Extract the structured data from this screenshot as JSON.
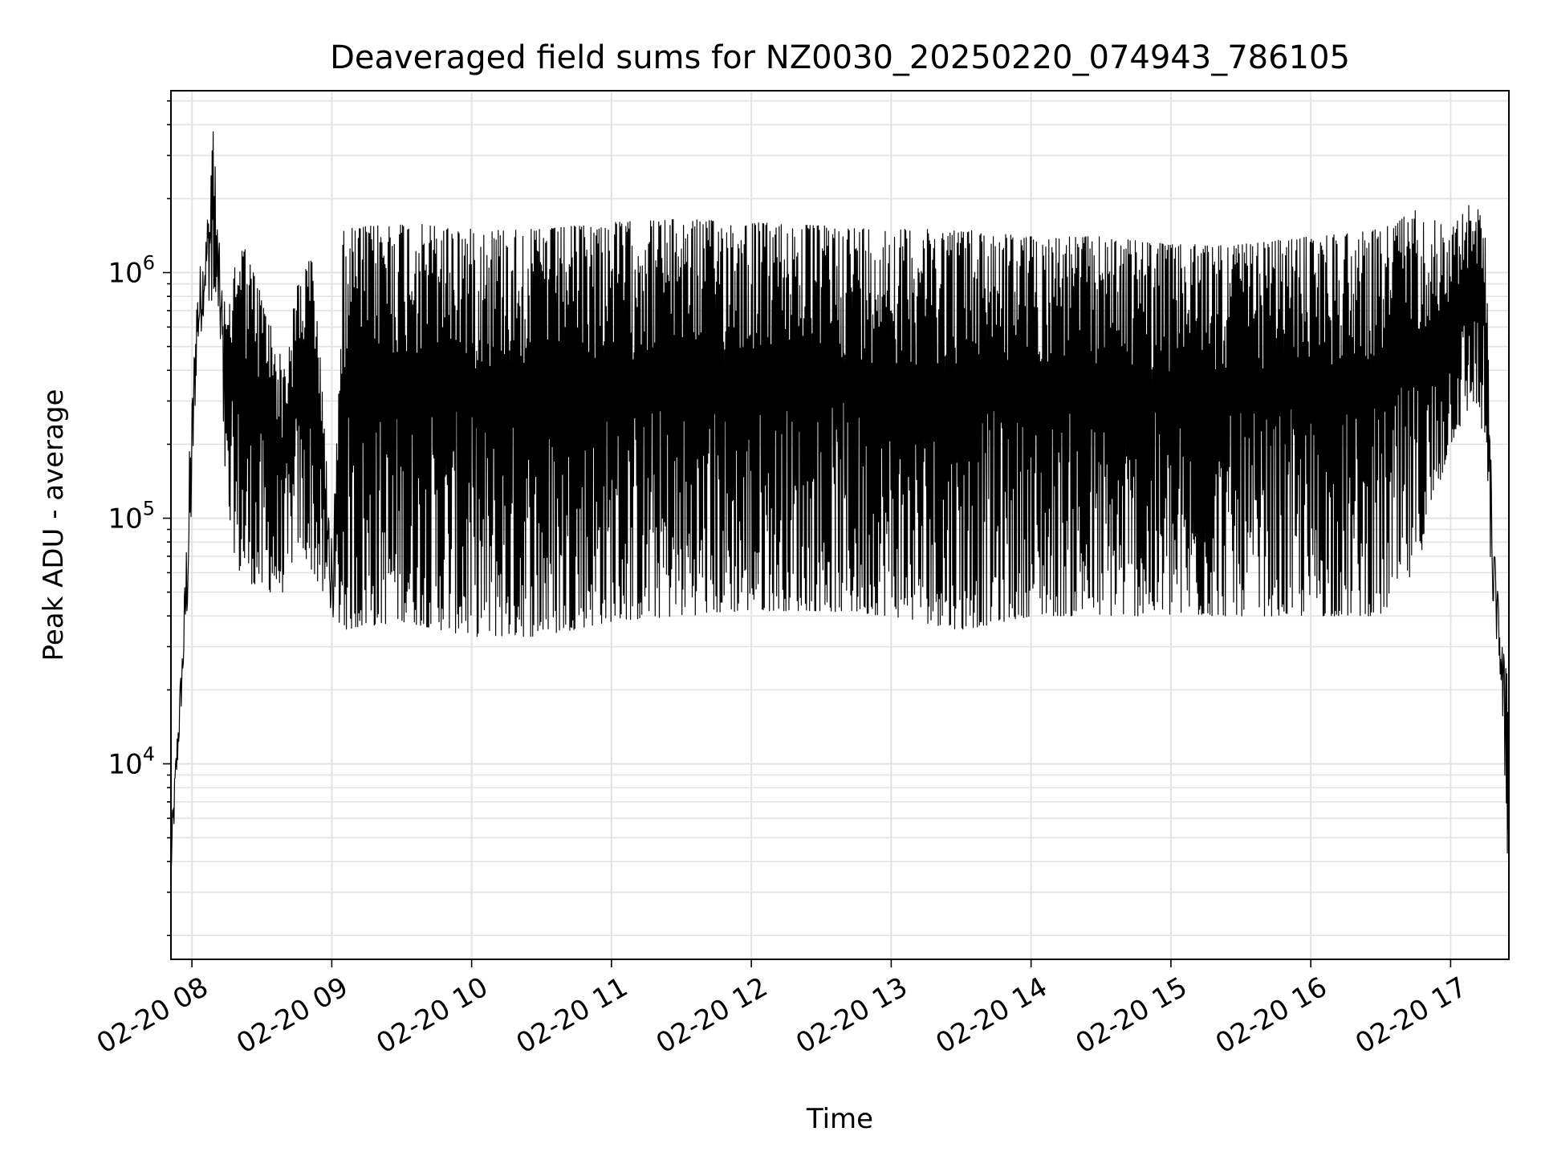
{
  "chart_data": {
    "type": "line",
    "title": "Deaveraged field sums for NZ0030_20250220_074943_786105",
    "xlabel": "Time",
    "ylabel": "Peak ADU - average",
    "y_scale": "log",
    "x_tick_labels": [
      "02-20 08",
      "02-20 09",
      "02-20 10",
      "02-20 11",
      "02-20 12",
      "02-20 13",
      "02-20 14",
      "02-20 15",
      "02-20 16",
      "02-20 17"
    ],
    "y_tick_labels": [
      {
        "base": "10",
        "exp": "4",
        "value": 10000
      },
      {
        "base": "10",
        "exp": "5",
        "value": 100000
      },
      {
        "base": "10",
        "exp": "6",
        "value": 1000000
      }
    ],
    "xlim": [
      "2025-02-20 07:51",
      "2025-02-20 17:25"
    ],
    "ylim": [
      1600,
      5500000
    ],
    "grid": true,
    "line_color": "#000000",
    "series": [
      {
        "envelope": [
          {
            "t": "07:51",
            "low": 3000,
            "high": 5000
          },
          {
            "t": "07:53",
            "low": 7000,
            "high": 11000
          },
          {
            "t": "07:56",
            "low": 20000,
            "high": 32000
          },
          {
            "t": "07:59",
            "low": 50000,
            "high": 200000
          },
          {
            "t": "08:02",
            "low": 400000,
            "high": 900000
          },
          {
            "t": "08:06",
            "low": 800000,
            "high": 1500000
          },
          {
            "t": "08:09",
            "low": 700000,
            "high": 4000000
          },
          {
            "t": "08:12",
            "low": 500000,
            "high": 1200000
          },
          {
            "t": "08:15",
            "low": 100000,
            "high": 600000
          },
          {
            "t": "08:20",
            "low": 60000,
            "high": 1500000
          },
          {
            "t": "08:30",
            "low": 50000,
            "high": 800000
          },
          {
            "t": "08:40",
            "low": 50000,
            "high": 400000
          },
          {
            "t": "08:45",
            "low": 80000,
            "high": 900000
          },
          {
            "t": "08:52",
            "low": 60000,
            "high": 1200000
          },
          {
            "t": "09:00",
            "low": 40000,
            "high": 90000
          },
          {
            "t": "09:05",
            "low": 35000,
            "high": 1500000
          },
          {
            "t": "09:30",
            "low": 38000,
            "high": 1600000
          },
          {
            "t": "10:00",
            "low": 33000,
            "high": 1500000
          },
          {
            "t": "10:30",
            "low": 33000,
            "high": 1500000
          },
          {
            "t": "11:00",
            "low": 38000,
            "high": 1600000
          },
          {
            "t": "11:30",
            "low": 40000,
            "high": 1650000
          },
          {
            "t": "12:00",
            "low": 42000,
            "high": 1600000
          },
          {
            "t": "12:30",
            "low": 42000,
            "high": 1550000
          },
          {
            "t": "13:00",
            "low": 40000,
            "high": 1500000
          },
          {
            "t": "13:30",
            "low": 35000,
            "high": 1500000
          },
          {
            "t": "14:00",
            "low": 40000,
            "high": 1400000
          },
          {
            "t": "14:30",
            "low": 40000,
            "high": 1400000
          },
          {
            "t": "15:00",
            "low": 40000,
            "high": 1300000
          },
          {
            "t": "15:30",
            "low": 40000,
            "high": 1300000
          },
          {
            "t": "16:00",
            "low": 40000,
            "high": 1400000
          },
          {
            "t": "16:30",
            "low": 40000,
            "high": 1500000
          },
          {
            "t": "16:45",
            "low": 60000,
            "high": 1800000
          },
          {
            "t": "17:00",
            "low": 200000,
            "high": 1500000
          },
          {
            "t": "17:10",
            "low": 300000,
            "high": 2000000
          },
          {
            "t": "17:15",
            "low": 200000,
            "high": 1500000
          },
          {
            "t": "17:18",
            "low": 40000,
            "high": 100000
          },
          {
            "t": "17:21",
            "low": 25000,
            "high": 40000
          },
          {
            "t": "17:25",
            "low": 3000,
            "high": 20000
          }
        ]
      }
    ]
  }
}
